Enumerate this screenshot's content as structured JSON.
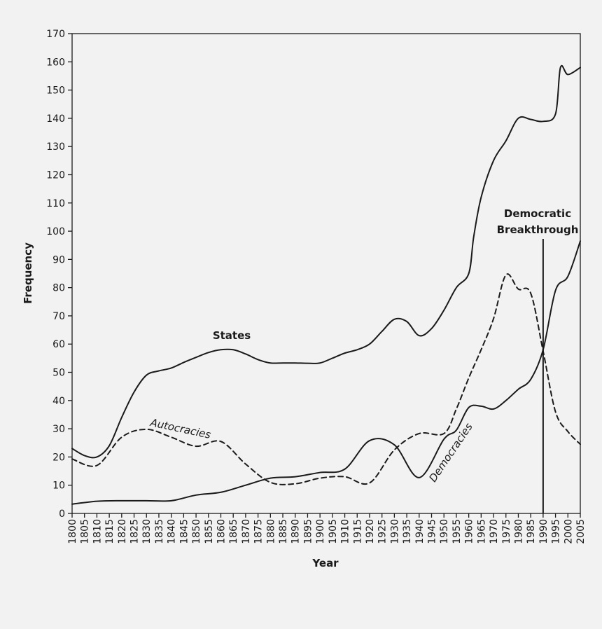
{
  "chart_data": {
    "type": "line",
    "xlabel": "Year",
    "ylabel": "Frequency",
    "xlim": [
      1800,
      2005
    ],
    "ylim": [
      0,
      170
    ],
    "x_ticks": [
      1800,
      1805,
      1810,
      1815,
      1820,
      1825,
      1830,
      1835,
      1840,
      1845,
      1850,
      1855,
      1860,
      1865,
      1870,
      1875,
      1880,
      1885,
      1890,
      1895,
      1900,
      1905,
      1910,
      1915,
      1920,
      1925,
      1930,
      1935,
      1940,
      1945,
      1950,
      1955,
      1960,
      1965,
      1970,
      1975,
      1980,
      1985,
      1990,
      1995,
      2000,
      2005
    ],
    "y_ticks": [
      0,
      10,
      20,
      30,
      40,
      50,
      60,
      70,
      80,
      90,
      100,
      110,
      120,
      130,
      140,
      150,
      160,
      170
    ],
    "grid": false,
    "series": [
      {
        "name": "States",
        "style": "solid",
        "points": [
          [
            1800,
            23
          ],
          [
            1805,
            20.5
          ],
          [
            1810,
            20
          ],
          [
            1815,
            24
          ],
          [
            1820,
            34
          ],
          [
            1825,
            43
          ],
          [
            1830,
            49
          ],
          [
            1835,
            50.5
          ],
          [
            1840,
            51.5
          ],
          [
            1845,
            53.5
          ],
          [
            1850,
            55.3
          ],
          [
            1855,
            57
          ],
          [
            1860,
            58
          ],
          [
            1865,
            58
          ],
          [
            1870,
            56.5
          ],
          [
            1875,
            54.5
          ],
          [
            1880,
            53.3
          ],
          [
            1885,
            53.3
          ],
          [
            1890,
            53.3
          ],
          [
            1895,
            53.2
          ],
          [
            1900,
            53.3
          ],
          [
            1905,
            55
          ],
          [
            1910,
            56.8
          ],
          [
            1915,
            58
          ],
          [
            1920,
            60
          ],
          [
            1925,
            64.5
          ],
          [
            1930,
            68.8
          ],
          [
            1935,
            68
          ],
          [
            1940,
            63
          ],
          [
            1945,
            65.5
          ],
          [
            1950,
            72
          ],
          [
            1955,
            80
          ],
          [
            1960,
            85
          ],
          [
            1962,
            98
          ],
          [
            1965,
            112
          ],
          [
            1970,
            125
          ],
          [
            1975,
            132
          ],
          [
            1980,
            140
          ],
          [
            1985,
            139.6
          ],
          [
            1990,
            138.9
          ],
          [
            1995,
            141.5
          ],
          [
            1997,
            158
          ],
          [
            2000,
            155.5
          ],
          [
            2005,
            158
          ]
        ]
      },
      {
        "name": "Autocracies",
        "style": "dashed",
        "points": [
          [
            1800,
            19.3
          ],
          [
            1810,
            17
          ],
          [
            1820,
            27
          ],
          [
            1830,
            29.8
          ],
          [
            1840,
            27
          ],
          [
            1850,
            23.8
          ],
          [
            1860,
            25.5
          ],
          [
            1870,
            17.5
          ],
          [
            1880,
            11
          ],
          [
            1890,
            10.5
          ],
          [
            1900,
            12.5
          ],
          [
            1910,
            13
          ],
          [
            1920,
            10.8
          ],
          [
            1930,
            22.5
          ],
          [
            1940,
            28.3
          ],
          [
            1950,
            28.3
          ],
          [
            1955,
            37
          ],
          [
            1960,
            48
          ],
          [
            1965,
            58
          ],
          [
            1970,
            69
          ],
          [
            1975,
            84.5
          ],
          [
            1980,
            79.5
          ],
          [
            1985,
            78
          ],
          [
            1990,
            57.5
          ],
          [
            1995,
            36
          ],
          [
            2000,
            29
          ],
          [
            2005,
            24.5
          ]
        ]
      },
      {
        "name": "Democracies",
        "style": "solid",
        "points": [
          [
            1800,
            3.3
          ],
          [
            1810,
            4.3
          ],
          [
            1820,
            4.5
          ],
          [
            1830,
            4.5
          ],
          [
            1840,
            4.5
          ],
          [
            1850,
            6.5
          ],
          [
            1860,
            7.5
          ],
          [
            1870,
            10
          ],
          [
            1880,
            12.5
          ],
          [
            1890,
            13
          ],
          [
            1900,
            14.5
          ],
          [
            1910,
            15.7
          ],
          [
            1920,
            25.8
          ],
          [
            1930,
            24.3
          ],
          [
            1940,
            12.7
          ],
          [
            1950,
            26.3
          ],
          [
            1955,
            29.5
          ],
          [
            1960,
            37.5
          ],
          [
            1965,
            38
          ],
          [
            1970,
            37
          ],
          [
            1975,
            40
          ],
          [
            1980,
            44
          ],
          [
            1985,
            47.5
          ],
          [
            1990,
            58
          ],
          [
            1995,
            79
          ],
          [
            2000,
            84
          ],
          [
            2005,
            96.5
          ]
        ]
      }
    ],
    "annotations": [
      {
        "text_lines": [
          "Democratic",
          "Breakthrough"
        ],
        "x": 1990,
        "type": "vertical-line"
      },
      {
        "text": "States",
        "series": "States"
      },
      {
        "text": "Autocracies",
        "series": "Autocracies"
      },
      {
        "text": "Democracies",
        "series": "Democracies"
      }
    ]
  }
}
